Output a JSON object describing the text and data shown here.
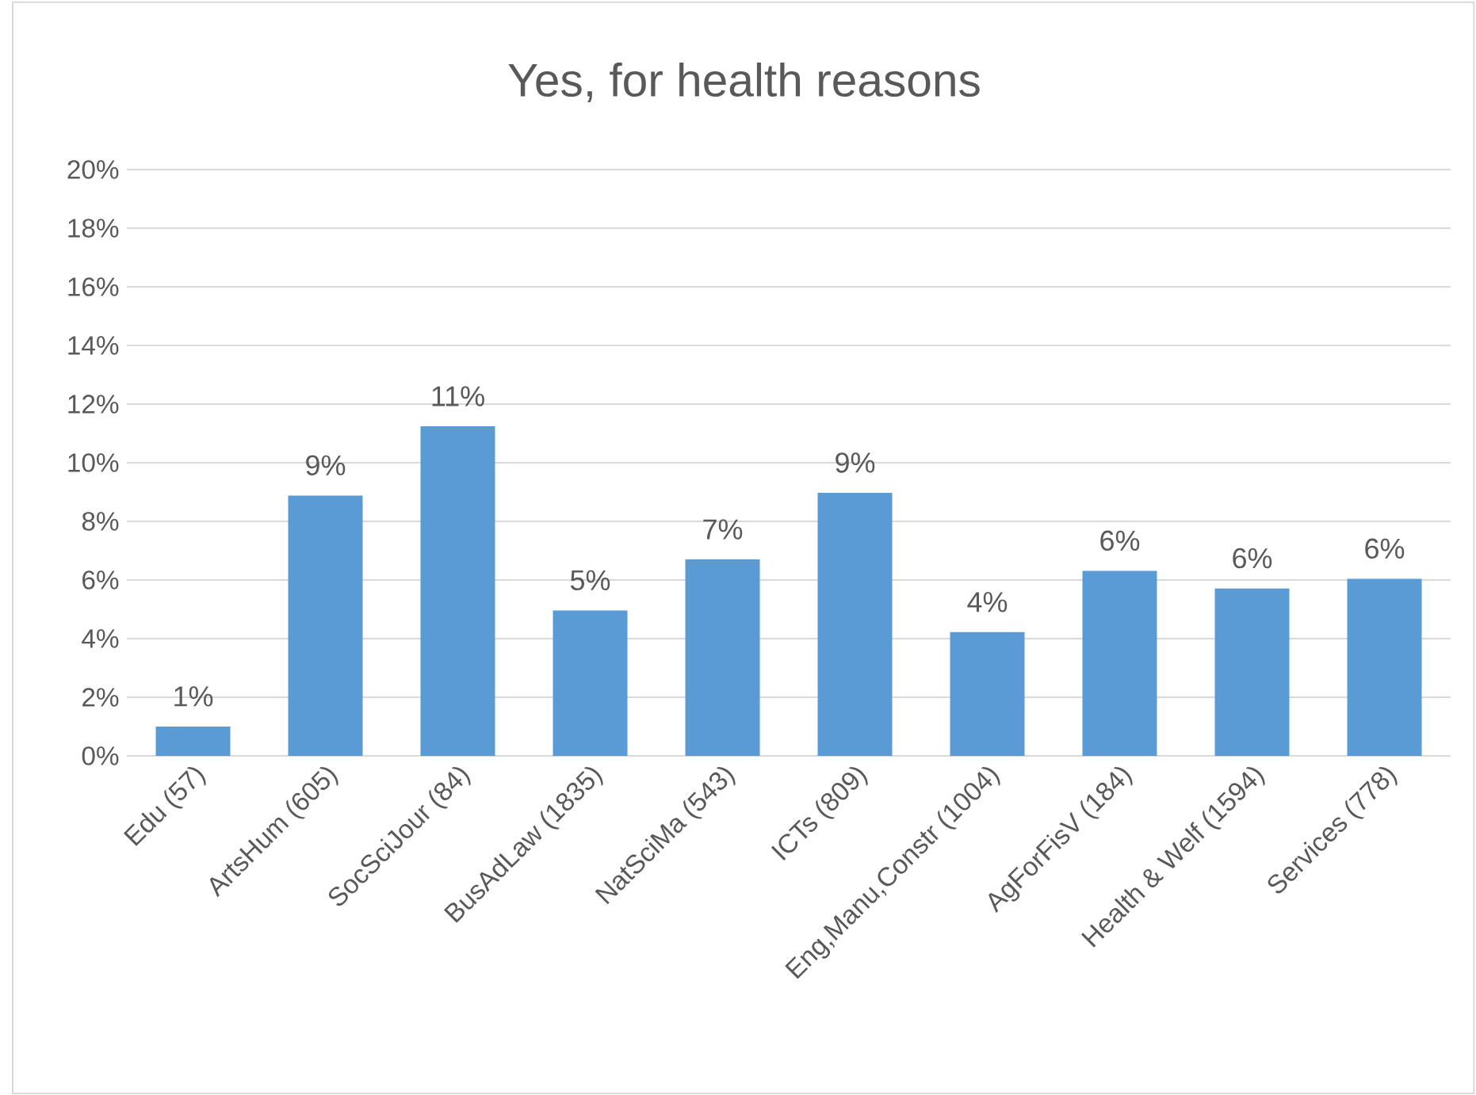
{
  "chart_data": {
    "type": "bar",
    "title": "Yes, for health reasons",
    "categories": [
      "Edu (57)",
      "ArtsHum (605)",
      "SocSciJour (84)",
      "BusAdLaw (1835)",
      "NatSciMa (543)",
      "ICTs (809)",
      "Eng,Manu,Constr (1004)",
      "AgForFisV (184)",
      "Health & Welf (1594)",
      "Services (778)"
    ],
    "values": [
      1.0,
      8.88,
      11.24,
      4.96,
      6.7,
      8.97,
      4.22,
      6.31,
      5.71,
      6.04
    ],
    "value_labels": [
      "1%",
      "9%",
      "11%",
      "5%",
      "7%",
      "9%",
      "4%",
      "6%",
      "6%",
      "6%"
    ],
    "color": "#5b9bd5",
    "ylim": [
      0,
      20
    ],
    "yticks": [
      {
        "value": 0,
        "label": "0%"
      },
      {
        "value": 2,
        "label": "2%"
      },
      {
        "value": 4,
        "label": "4%"
      },
      {
        "value": 6,
        "label": "6%"
      },
      {
        "value": 8,
        "label": "8%"
      },
      {
        "value": 10,
        "label": "10%"
      },
      {
        "value": 12,
        "label": "12%"
      },
      {
        "value": 14,
        "label": "14%"
      },
      {
        "value": 16,
        "label": "16%"
      },
      {
        "value": 18,
        "label": "18%"
      },
      {
        "value": 20,
        "label": "20%"
      }
    ],
    "grid": "y"
  }
}
